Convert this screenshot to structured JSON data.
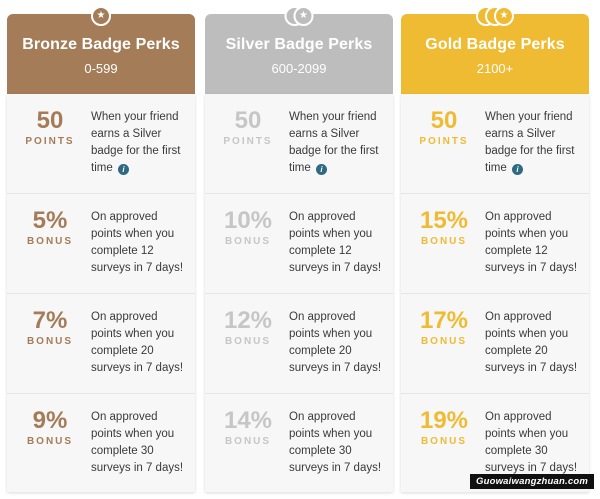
{
  "columns": [
    {
      "title": "Bronze Badge Perks",
      "range": "0-599",
      "rows": [
        {
          "value": "50",
          "unit": "POINTS",
          "desc": "When your friend earns a Silver badge for the first time"
        },
        {
          "value": "5%",
          "unit": "BONUS",
          "desc": "On approved points when you complete 12 surveys in 7 days!"
        },
        {
          "value": "7%",
          "unit": "BONUS",
          "desc": "On approved points when you complete 20 surveys in 7 days!"
        },
        {
          "value": "9%",
          "unit": "BONUS",
          "desc": "On approved points when you complete 30 surveys in 7 days!"
        }
      ]
    },
    {
      "title": "Silver Badge Perks",
      "range": "600-2099",
      "rows": [
        {
          "value": "50",
          "unit": "POINTS",
          "desc": "When your friend earns a Silver badge for the first time"
        },
        {
          "value": "10%",
          "unit": "BONUS",
          "desc": "On approved points when you complete 12 surveys in 7 days!"
        },
        {
          "value": "12%",
          "unit": "BONUS",
          "desc": "On approved points when you complete 20 surveys in 7 days!"
        },
        {
          "value": "14%",
          "unit": "BONUS",
          "desc": "On approved points when you complete 30 surveys in 7 days!"
        }
      ]
    },
    {
      "title": "Gold Badge Perks",
      "range": "2100+",
      "rows": [
        {
          "value": "50",
          "unit": "POINTS",
          "desc": "When your friend earns a Silver badge for the first time"
        },
        {
          "value": "15%",
          "unit": "BONUS",
          "desc": "On approved points when you complete 12 surveys in 7 days!"
        },
        {
          "value": "17%",
          "unit": "BONUS",
          "desc": "On approved points when you complete 20 surveys in 7 days!"
        },
        {
          "value": "19%",
          "unit": "BONUS",
          "desc": "On approved points when you complete 30 surveys in 7 days!"
        }
      ]
    }
  ],
  "icons": {
    "badge": "star-coin-icon",
    "info": "info-icon"
  },
  "info_glyph": "i",
  "colors": {
    "bronze": "#a47c58",
    "silver": "#bdbdbd",
    "gold": "#efbb33",
    "info": "#2f6a82",
    "body_bg": "#f7f7f7"
  },
  "watermark": "Guowaiwangzhuan.com"
}
